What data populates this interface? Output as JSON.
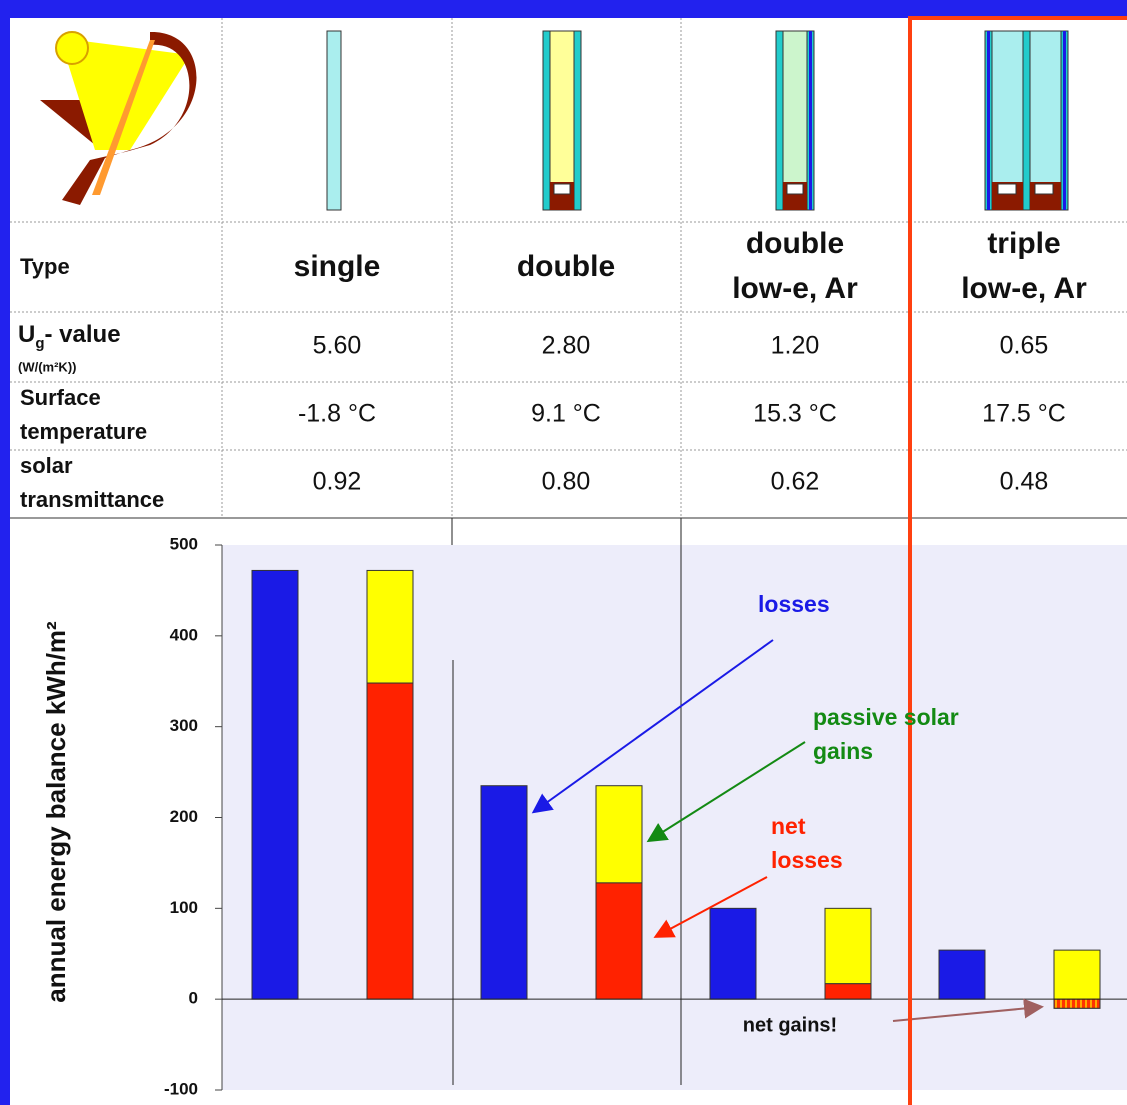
{
  "table": {
    "type_row": {
      "label": "Type",
      "cells": [
        [
          "single"
        ],
        [
          "double"
        ],
        [
          "double",
          "low-e, Ar"
        ],
        [
          "triple",
          "low-e, Ar"
        ]
      ]
    },
    "rows": [
      {
        "label": [
          "U",
          "g",
          "- value"
        ],
        "unit": "(W/(m²K))",
        "cells": [
          "5.60",
          "2.80",
          "1.20",
          "0.65"
        ]
      },
      {
        "label": [
          "Surface",
          "temperature"
        ],
        "cells": [
          "-1.8 °C",
          "9.1 °C",
          "15.3 °C",
          "17.5 °C"
        ]
      },
      {
        "label": [
          "solar",
          "transmittance"
        ],
        "cells": [
          "0.92",
          "0.80",
          "0.62",
          "0.48"
        ]
      }
    ]
  },
  "chart_data": {
    "type": "bar",
    "y_label": "annual energy balance kWh/m²",
    "ylim": [
      -100,
      500
    ],
    "yticks": [
      -100,
      0,
      100,
      200,
      300,
      400,
      500
    ],
    "series": [
      {
        "name": "losses",
        "color": "#1a1ae6",
        "label_color": "#1a1ae6",
        "values": [
          472,
          235,
          100,
          54
        ]
      },
      {
        "name": "net losses",
        "color": "#ff2200",
        "label_color": "#ff2200",
        "values": [
          348,
          128,
          17,
          -10
        ]
      },
      {
        "name": "passive solar gains",
        "color": "#ffff00",
        "label_color": "#138a13",
        "values": [
          124,
          107,
          83,
          64
        ]
      }
    ],
    "annotation": "net gains!"
  }
}
